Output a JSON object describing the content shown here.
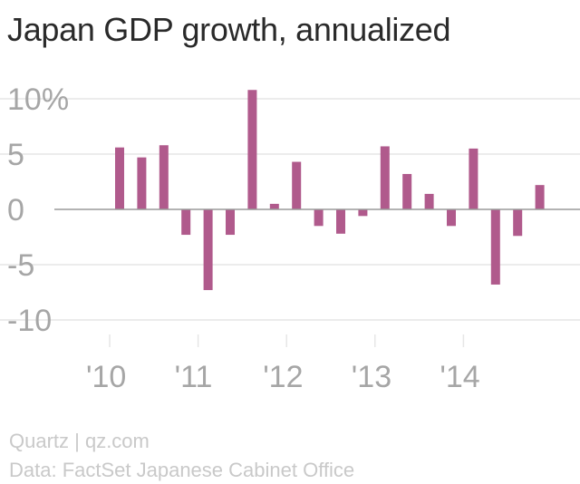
{
  "title": "Japan GDP growth, annualized",
  "footer": {
    "credit": "Quartz | qz.com",
    "source": "Data: FactSet Japanese Cabinet Office"
  },
  "colors": {
    "bar": "#b05a8c",
    "grid": "#e6e6e6",
    "zero_line": "#9a9a9a",
    "tick_text": "#a6a6a6",
    "title": "#2a2a2a",
    "footer": "#c9c9c9"
  },
  "chart_data": {
    "type": "bar",
    "title": "Japan GDP growth, annualized",
    "xlabel": "",
    "ylabel": "",
    "unit": "%",
    "ylim": [
      -10,
      12
    ],
    "yticks": [
      {
        "value": 10,
        "label": "10%"
      },
      {
        "value": 5,
        "label": "5"
      },
      {
        "value": 0,
        "label": "0"
      },
      {
        "value": -5,
        "label": "-5"
      },
      {
        "value": -10,
        "label": "-10"
      }
    ],
    "xticks": [
      "'10",
      "'11",
      "'12",
      "'13",
      "'14"
    ],
    "grid": true,
    "legend": "none",
    "categories": [
      "2010 Q1",
      "2010 Q2",
      "2010 Q3",
      "2010 Q4",
      "2011 Q1",
      "2011 Q2",
      "2011 Q3",
      "2011 Q4",
      "2012 Q1",
      "2012 Q2",
      "2012 Q3",
      "2012 Q4",
      "2013 Q1",
      "2013 Q2",
      "2013 Q3",
      "2013 Q4",
      "2014 Q1",
      "2014 Q2",
      "2014 Q3",
      "2014 Q4"
    ],
    "values": [
      5.6,
      4.7,
      5.8,
      -2.3,
      -7.3,
      -2.3,
      10.8,
      0.5,
      4.3,
      -1.5,
      -2.2,
      -0.6,
      5.7,
      3.2,
      1.4,
      -1.5,
      5.5,
      -6.8,
      -2.4,
      2.2
    ]
  }
}
